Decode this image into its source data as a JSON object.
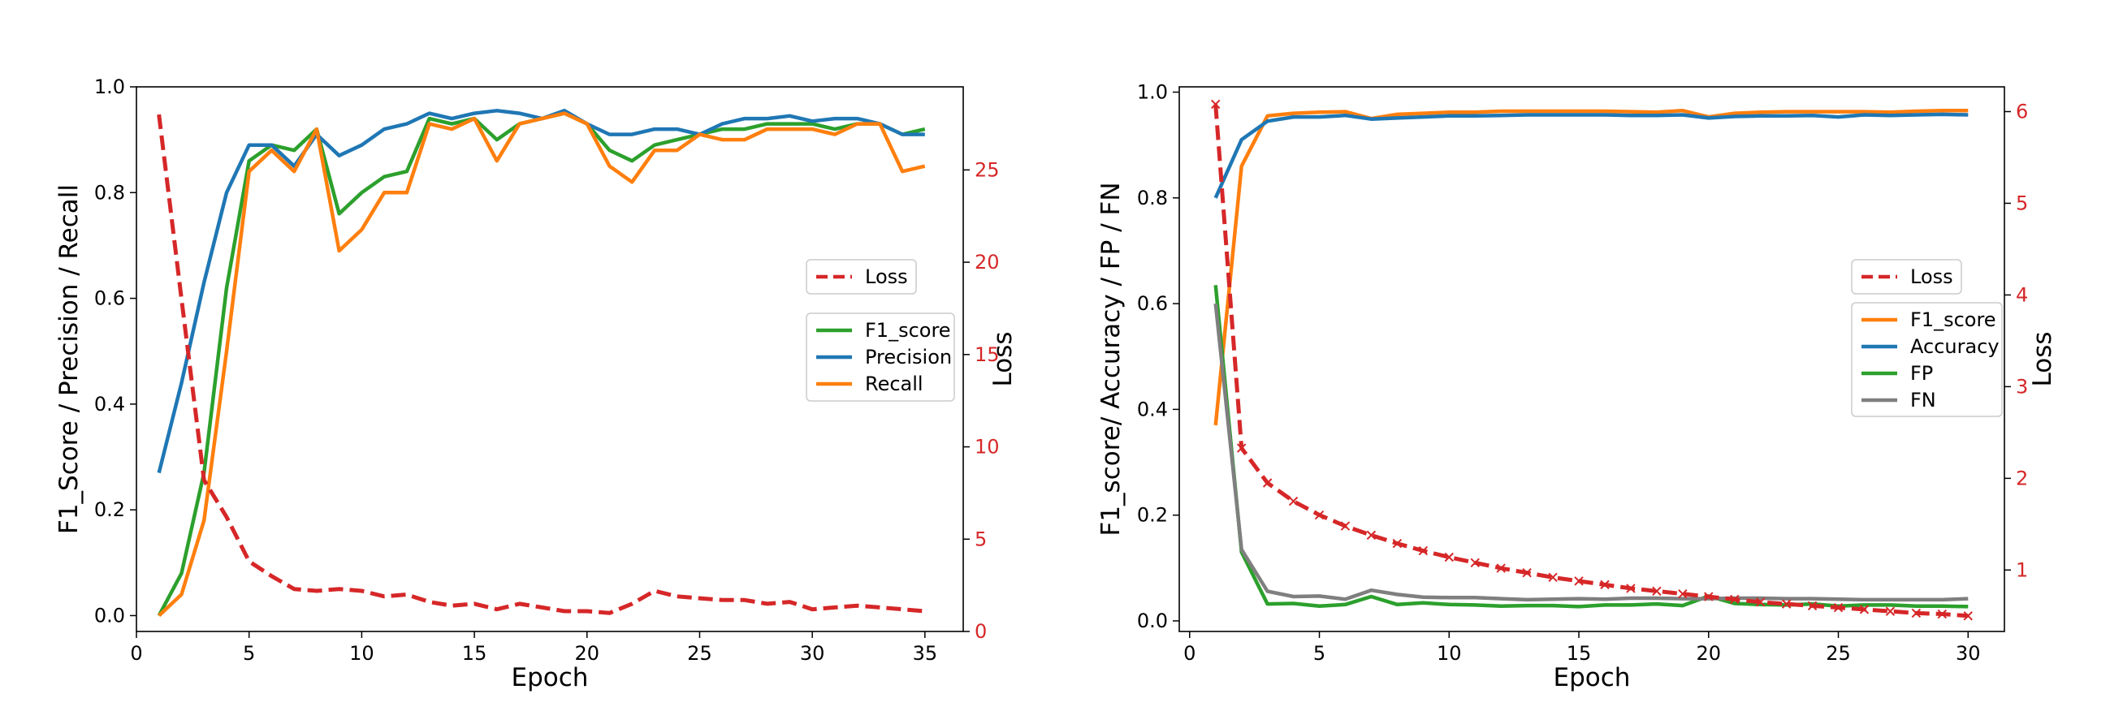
{
  "colors": {
    "loss": "#d62728",
    "f1": "#2ca02c",
    "precision": "#1f77b4",
    "recall": "#ff7f0e",
    "accuracy": "#1f77b4",
    "f1_right": "#ff7f0e",
    "fp": "#2ca02c",
    "fn": "#7f7f7f"
  },
  "chart_data": [
    {
      "type": "line",
      "xlabel": "Epoch",
      "ylabel": "F1_Score / Precision / Recall",
      "y2label": "Loss",
      "xlim": [
        0,
        36.7
      ],
      "ylim": [
        -0.03,
        1.0
      ],
      "y2lim": [
        0,
        29.5
      ],
      "xticks": [
        {
          "value": 0,
          "label": "0"
        },
        {
          "value": 5,
          "label": "5"
        },
        {
          "value": 10,
          "label": "10"
        },
        {
          "value": 15,
          "label": "15"
        },
        {
          "value": 20,
          "label": "20"
        },
        {
          "value": 25,
          "label": "25"
        },
        {
          "value": 30,
          "label": "30"
        },
        {
          "value": 35,
          "label": "35"
        }
      ],
      "yticks": [
        {
          "value": 0.0,
          "label": "0.0"
        },
        {
          "value": 0.2,
          "label": "0.2"
        },
        {
          "value": 0.4,
          "label": "0.4"
        },
        {
          "value": 0.6,
          "label": "0.6"
        },
        {
          "value": 0.8,
          "label": "0.8"
        },
        {
          "value": 1.0,
          "label": "1.0"
        }
      ],
      "y2ticks": [
        {
          "value": 0,
          "label": "0"
        },
        {
          "value": 5,
          "label": "5"
        },
        {
          "value": 10,
          "label": "10"
        },
        {
          "value": 15,
          "label": "15"
        },
        {
          "value": 20,
          "label": "20"
        },
        {
          "value": 25,
          "label": "25"
        }
      ],
      "x": [
        1,
        2,
        3,
        4,
        5,
        6,
        7,
        8,
        9,
        10,
        11,
        12,
        13,
        14,
        15,
        16,
        17,
        18,
        19,
        20,
        21,
        22,
        23,
        24,
        25,
        26,
        27,
        28,
        29,
        30,
        31,
        32,
        33,
        34,
        35
      ],
      "series": [
        {
          "name": "F1_score",
          "axis": "left",
          "color_key": "f1",
          "style": "solid",
          "values": [
            0.0,
            0.08,
            0.27,
            0.62,
            0.86,
            0.89,
            0.88,
            0.92,
            0.76,
            0.8,
            0.83,
            0.84,
            0.94,
            0.93,
            0.94,
            0.9,
            0.93,
            0.94,
            0.95,
            0.93,
            0.88,
            0.86,
            0.89,
            0.9,
            0.91,
            0.92,
            0.92,
            0.93,
            0.93,
            0.93,
            0.92,
            0.93,
            0.93,
            0.91,
            0.92
          ]
        },
        {
          "name": "Precision",
          "axis": "left",
          "color_key": "precision",
          "style": "solid",
          "values": [
            0.27,
            0.44,
            0.63,
            0.8,
            0.89,
            0.89,
            0.85,
            0.91,
            0.87,
            0.89,
            0.92,
            0.93,
            0.95,
            0.94,
            0.95,
            0.955,
            0.95,
            0.94,
            0.955,
            0.93,
            0.91,
            0.91,
            0.92,
            0.92,
            0.91,
            0.93,
            0.94,
            0.94,
            0.945,
            0.935,
            0.94,
            0.94,
            0.93,
            0.91,
            0.91
          ]
        },
        {
          "name": "Recall",
          "axis": "left",
          "color_key": "recall",
          "style": "solid",
          "values": [
            0.0,
            0.04,
            0.18,
            0.5,
            0.84,
            0.88,
            0.84,
            0.92,
            0.69,
            0.73,
            0.8,
            0.8,
            0.93,
            0.92,
            0.94,
            0.86,
            0.93,
            0.94,
            0.95,
            0.93,
            0.85,
            0.82,
            0.88,
            0.88,
            0.91,
            0.9,
            0.9,
            0.92,
            0.92,
            0.92,
            0.91,
            0.93,
            0.93,
            0.84,
            0.85
          ]
        },
        {
          "name": "Loss",
          "axis": "right",
          "color_key": "loss",
          "style": "dashed",
          "values": [
            28.0,
            18.0,
            8.2,
            6.2,
            3.8,
            3.0,
            2.3,
            2.2,
            2.3,
            2.2,
            1.9,
            2.0,
            1.6,
            1.4,
            1.5,
            1.2,
            1.5,
            1.3,
            1.1,
            1.1,
            1.0,
            1.5,
            2.2,
            1.9,
            1.8,
            1.7,
            1.7,
            1.5,
            1.6,
            1.2,
            1.3,
            1.4,
            1.3,
            1.2,
            1.1
          ]
        }
      ],
      "legends": [
        {
          "location": "center-right-upper",
          "entries": [
            "Loss"
          ]
        },
        {
          "location": "center-right",
          "entries": [
            "F1_score",
            "Precision",
            "Recall"
          ]
        }
      ]
    },
    {
      "type": "line",
      "xlabel": "Epoch",
      "ylabel": "F1_score/ Accuracy / FP / FN",
      "y2label": "Loss",
      "xlim": [
        -0.4,
        31.4
      ],
      "ylim": [
        -0.02,
        1.01
      ],
      "y2lim": [
        0.33,
        6.27
      ],
      "xticks": [
        {
          "value": 0,
          "label": "0"
        },
        {
          "value": 5,
          "label": "5"
        },
        {
          "value": 10,
          "label": "10"
        },
        {
          "value": 15,
          "label": "15"
        },
        {
          "value": 20,
          "label": "20"
        },
        {
          "value": 25,
          "label": "25"
        },
        {
          "value": 30,
          "label": "30"
        }
      ],
      "yticks": [
        {
          "value": 0.0,
          "label": "0.0"
        },
        {
          "value": 0.2,
          "label": "0.2"
        },
        {
          "value": 0.4,
          "label": "0.4"
        },
        {
          "value": 0.6,
          "label": "0.6"
        },
        {
          "value": 0.8,
          "label": "0.8"
        },
        {
          "value": 1.0,
          "label": "1.0"
        }
      ],
      "y2ticks": [
        {
          "value": 1,
          "label": "1"
        },
        {
          "value": 2,
          "label": "2"
        },
        {
          "value": 3,
          "label": "3"
        },
        {
          "value": 4,
          "label": "4"
        },
        {
          "value": 5,
          "label": "5"
        },
        {
          "value": 6,
          "label": "6"
        }
      ],
      "x": [
        1,
        2,
        3,
        4,
        5,
        6,
        7,
        8,
        9,
        10,
        11,
        12,
        13,
        14,
        15,
        16,
        17,
        18,
        19,
        20,
        21,
        22,
        23,
        24,
        25,
        26,
        27,
        28,
        29,
        30
      ],
      "series": [
        {
          "name": "F1_score",
          "axis": "left",
          "color_key": "f1_right",
          "style": "solid",
          "values": [
            0.37,
            0.86,
            0.955,
            0.96,
            0.962,
            0.963,
            0.95,
            0.958,
            0.96,
            0.962,
            0.962,
            0.964,
            0.964,
            0.964,
            0.964,
            0.964,
            0.963,
            0.962,
            0.965,
            0.953,
            0.96,
            0.962,
            0.963,
            0.963,
            0.963,
            0.963,
            0.962,
            0.964,
            0.965,
            0.965
          ]
        },
        {
          "name": "Accuracy",
          "axis": "left",
          "color_key": "accuracy",
          "style": "solid",
          "values": [
            0.8,
            0.91,
            0.945,
            0.953,
            0.953,
            0.956,
            0.949,
            0.951,
            0.953,
            0.955,
            0.955,
            0.956,
            0.957,
            0.957,
            0.957,
            0.957,
            0.956,
            0.956,
            0.957,
            0.951,
            0.954,
            0.955,
            0.955,
            0.956,
            0.953,
            0.957,
            0.956,
            0.957,
            0.958,
            0.957
          ]
        },
        {
          "name": "FP",
          "axis": "left",
          "color_key": "fp",
          "style": "solid",
          "values": [
            0.635,
            0.13,
            0.032,
            0.033,
            0.028,
            0.031,
            0.046,
            0.031,
            0.034,
            0.031,
            0.03,
            0.028,
            0.029,
            0.029,
            0.027,
            0.03,
            0.03,
            0.032,
            0.029,
            0.047,
            0.033,
            0.031,
            0.03,
            0.032,
            0.028,
            0.03,
            0.03,
            0.028,
            0.028,
            0.027
          ]
        },
        {
          "name": "FN",
          "axis": "left",
          "color_key": "fn",
          "style": "solid",
          "values": [
            0.6,
            0.135,
            0.056,
            0.046,
            0.047,
            0.041,
            0.058,
            0.05,
            0.045,
            0.044,
            0.044,
            0.042,
            0.04,
            0.041,
            0.042,
            0.041,
            0.043,
            0.043,
            0.042,
            0.042,
            0.043,
            0.043,
            0.042,
            0.042,
            0.041,
            0.04,
            0.04,
            0.04,
            0.04,
            0.042
          ]
        },
        {
          "name": "Loss",
          "axis": "right",
          "color_key": "loss",
          "style": "dashed",
          "marker": "x",
          "values": [
            6.08,
            2.33,
            1.95,
            1.75,
            1.6,
            1.48,
            1.38,
            1.29,
            1.21,
            1.14,
            1.08,
            1.02,
            0.97,
            0.92,
            0.88,
            0.84,
            0.8,
            0.77,
            0.74,
            0.71,
            0.68,
            0.65,
            0.63,
            0.61,
            0.59,
            0.57,
            0.55,
            0.53,
            0.52,
            0.5
          ]
        }
      ],
      "legends": [
        {
          "location": "center-right-upper",
          "entries": [
            "Loss"
          ]
        },
        {
          "location": "center-right",
          "entries": [
            "F1_score",
            "Accuracy",
            "FP",
            "FN"
          ]
        }
      ]
    }
  ]
}
